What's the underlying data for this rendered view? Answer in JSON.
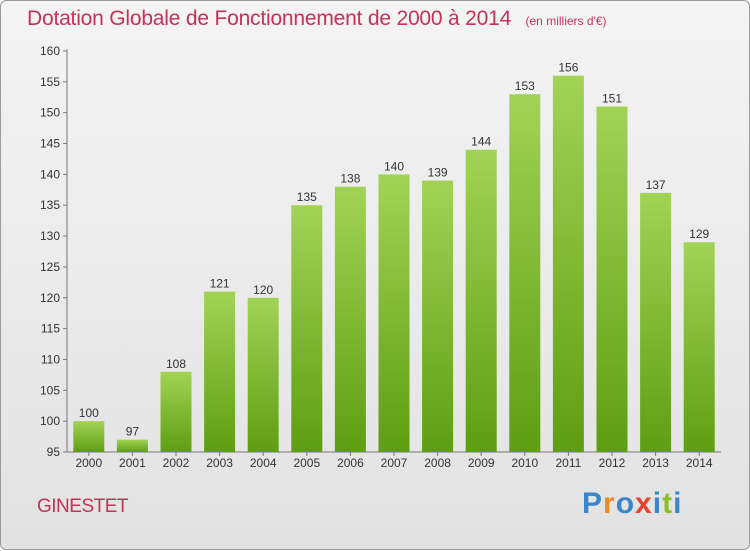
{
  "chart_data": {
    "type": "bar",
    "title": "Dotation Globale de Fonctionnement de 2000 à 2014",
    "unit": "(en milliers d'€)",
    "categories": [
      "2000",
      "2001",
      "2002",
      "2003",
      "2004",
      "2005",
      "2006",
      "2007",
      "2008",
      "2009",
      "2010",
      "2011",
      "2012",
      "2013",
      "2014"
    ],
    "values": [
      100,
      97,
      108,
      121,
      120,
      135,
      138,
      140,
      139,
      144,
      153,
      156,
      151,
      137,
      129
    ],
    "ylim": [
      95,
      160
    ],
    "yticks": [
      95,
      100,
      105,
      110,
      115,
      120,
      125,
      130,
      135,
      140,
      145,
      150,
      155,
      160
    ],
    "grid": false,
    "colors": {
      "bar_top": "#a2d356",
      "bar_bottom": "#5e9e12",
      "title": "#c8305a"
    }
  },
  "footer": {
    "commune": "GINESTET",
    "logo_letters": [
      "P",
      "r",
      "o",
      "x",
      "i",
      "t",
      "i"
    ],
    "logo_colors": [
      "#3a86c8",
      "#f08a1c",
      "#3a86c8",
      "#e8412c",
      "#3a86c8",
      "#8cbf26",
      "#3a86c8"
    ]
  }
}
